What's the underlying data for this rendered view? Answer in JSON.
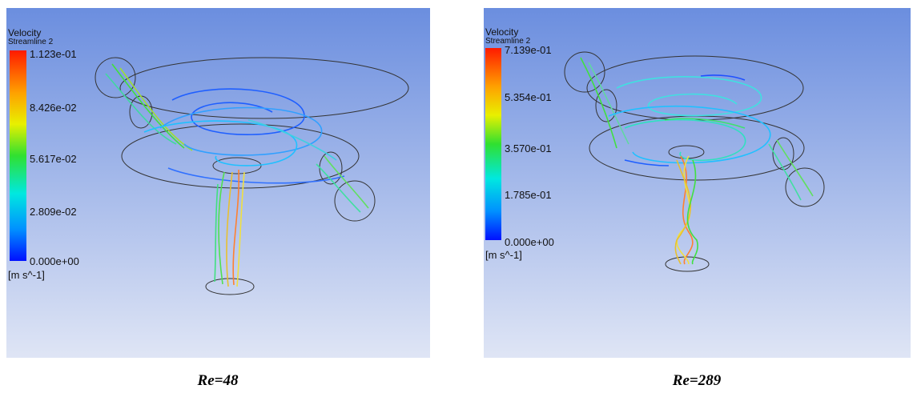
{
  "panels": [
    {
      "legend_title": "Velocity",
      "legend_subtitle": "Streamline 2",
      "legend_labels": [
        "1.123e-01",
        "8.426e-02",
        "5.617e-02",
        "2.809e-02",
        "0.000e+00"
      ],
      "unit": "[m s^-1]",
      "caption": "Re=48"
    },
    {
      "legend_title": "Velocity",
      "legend_subtitle": "Streamline 2",
      "legend_labels": [
        "7.139e-01",
        "5.354e-01",
        "3.570e-01",
        "1.785e-01",
        "0.000e+00"
      ],
      "unit": "[m s^-1]",
      "caption": "Re=289"
    }
  ]
}
